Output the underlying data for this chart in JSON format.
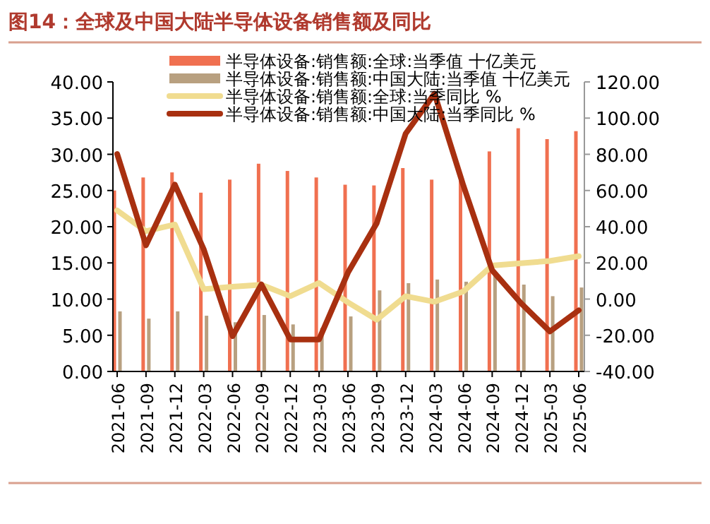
{
  "chart_data": {
    "type": "bar",
    "title": "图14：全球及中国大陆半导体设备销售额及同比",
    "categories": [
      "2021-06",
      "2021-09",
      "2021-12",
      "2022-03",
      "2022-06",
      "2022-09",
      "2022-12",
      "2023-03",
      "2023-06",
      "2023-09",
      "2023-12",
      "2024-03",
      "2024-06",
      "2024-09",
      "2024-12",
      "2025-03",
      "2025-06"
    ],
    "series": [
      {
        "name": "半导体设备:销售额:全球:当季值 十亿美元",
        "color": "#f07050",
        "values": [
          25.0,
          26.8,
          27.5,
          24.7,
          26.5,
          28.7,
          27.7,
          26.8,
          25.8,
          25.7,
          28.1,
          26.5,
          26.8,
          30.4,
          33.6,
          32.1,
          33.2
        ]
      },
      {
        "name": "半导体设备:销售额:中国大陆:当季值 十亿美元",
        "color": "#b8a080",
        "values": [
          8.3,
          7.3,
          8.3,
          7.7,
          6.8,
          7.8,
          6.5,
          6.0,
          7.6,
          11.2,
          12.2,
          12.7,
          12.4,
          13.7,
          12.0,
          10.4,
          11.6
        ]
      },
      {
        "name": "半导体设备:销售额:全球:当季同比 %",
        "type": "line",
        "axis": "y2",
        "color": "#f0dc90",
        "values": [
          49.0,
          37.5,
          41.2,
          5.5,
          6.8,
          7.9,
          1.6,
          8.9,
          -1.8,
          -11.4,
          1.6,
          -1.5,
          4.2,
          18.5,
          19.8,
          21.1,
          23.7
        ]
      },
      {
        "name": "半导体设备:销售额:中国大陆:当季同比 %",
        "type": "line",
        "axis": "y2",
        "color": "#a83010",
        "values": [
          80.2,
          29.7,
          63.3,
          27.6,
          -20.5,
          8.1,
          -22.3,
          -22.3,
          14.6,
          42.0,
          91.4,
          113.5,
          62.8,
          15.9,
          -2.3,
          -17.9,
          -6.2
        ]
      }
    ],
    "ylim": [
      0,
      40
    ],
    "yticks": [
      {
        "value": 0,
        "label": "0.00"
      },
      {
        "value": 5,
        "label": "5.00"
      },
      {
        "value": 10,
        "label": "10.00"
      },
      {
        "value": 15,
        "label": "15.00"
      },
      {
        "value": 20,
        "label": "20.00"
      },
      {
        "value": 25,
        "label": "25.00"
      },
      {
        "value": 30,
        "label": "30.00"
      },
      {
        "value": 35,
        "label": "35.00"
      },
      {
        "value": 40,
        "label": "40.00"
      }
    ],
    "y2lim": [
      -40,
      120
    ],
    "y2ticks": [
      {
        "value": -40,
        "label": "-40.00"
      },
      {
        "value": -20,
        "label": "-20.00"
      },
      {
        "value": 0,
        "label": "0.00"
      },
      {
        "value": 20,
        "label": "20.00"
      },
      {
        "value": 40,
        "label": "40.00"
      },
      {
        "value": 60,
        "label": "60.00"
      },
      {
        "value": 80,
        "label": "80.00"
      },
      {
        "value": 100,
        "label": "100.00"
      },
      {
        "value": 120,
        "label": "120.00"
      }
    ],
    "legend": "top",
    "grid": false,
    "marker": "none",
    "line_style": "solid"
  }
}
